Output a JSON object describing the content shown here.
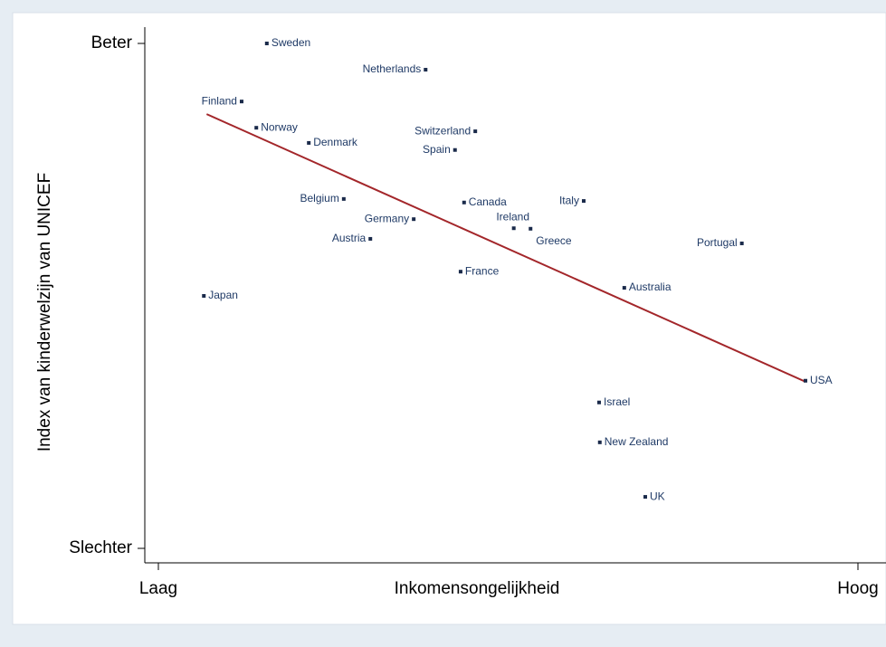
{
  "chart_data": {
    "type": "scatter",
    "xlabel": "Inkomensongelijkheid",
    "ylabel": "Index van kinderwelzijn van UNICEF",
    "xlim": [
      0,
      100
    ],
    "ylim": [
      0,
      100
    ],
    "xticks": [
      {
        "value": 0,
        "label": "Laag"
      },
      {
        "value": 100,
        "label": "Hoog"
      }
    ],
    "yticks": [
      {
        "value": 0,
        "label": "Slechter"
      },
      {
        "value": 100,
        "label": "Beter"
      }
    ],
    "color": "#1a2a4a",
    "labels": [
      "Sweden",
      "Netherlands",
      "Finland",
      "Norway",
      "Denmark",
      "Switzerland",
      "Spain",
      "Belgium",
      "Canada",
      "Italy",
      "Germany",
      "Ireland",
      "Greece",
      "Austria",
      "Portugal",
      "France",
      "Australia",
      "Japan",
      "USA",
      "Israel",
      "New Zealand",
      "UK"
    ],
    "x": [
      15.5,
      38.2,
      11.9,
      14.0,
      21.5,
      45.3,
      42.4,
      26.5,
      43.7,
      60.8,
      36.5,
      50.8,
      53.2,
      30.3,
      83.4,
      43.2,
      66.6,
      6.5,
      92.5,
      63.0,
      63.1,
      69.6
    ],
    "y": [
      100,
      94.8,
      88.5,
      83.3,
      80.3,
      82.6,
      78.9,
      69.2,
      68.5,
      68.8,
      65.2,
      63.4,
      63.3,
      61.3,
      60.4,
      54.8,
      51.6,
      50.0,
      33.2,
      28.9,
      21.0,
      10.2
    ],
    "trend": {
      "x": [
        6.9,
        92.5
      ],
      "y": [
        86.0,
        33.0
      ],
      "color": "#a3262a"
    }
  }
}
